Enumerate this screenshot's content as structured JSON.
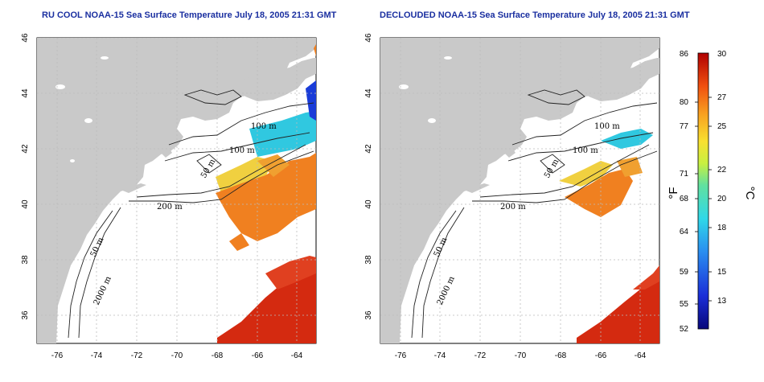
{
  "maps": [
    {
      "id": "left",
      "title": "RU COOL NOAA-15 Sea Surface Temperature July 18, 2005 21:31 GMT",
      "variant": "full-coverage"
    },
    {
      "id": "right",
      "title": "DECLOUDED NOAA-15 Sea Surface Temperature July 18, 2005 21:31 GMT",
      "variant": "declouded"
    }
  ],
  "axes": {
    "lon_ticks": [
      "-76",
      "-74",
      "-72",
      "-70",
      "-68",
      "-66",
      "-64"
    ],
    "lat_ticks": [
      "46",
      "44",
      "42",
      "40",
      "38",
      "36"
    ],
    "lon_range": [
      -77,
      -63
    ],
    "lat_range": [
      35,
      46
    ],
    "grid": true
  },
  "contour_labels": {
    "left": [
      "100 m",
      "100 m",
      "50 m",
      "200 m",
      "50 m",
      "2000 m"
    ],
    "right": [
      "100 m",
      "100 m",
      "50 m",
      "200 m",
      "50 m",
      "2000 m"
    ]
  },
  "colorbar": {
    "fahrenheit_ticks": [
      "86",
      "80",
      "77",
      "71",
      "68",
      "64",
      "59",
      "55",
      "52"
    ],
    "celsius_ticks": [
      "30",
      "27",
      "25",
      "22",
      "20",
      "18",
      "15",
      "13"
    ],
    "unit_f": "°F",
    "unit_c": "°C",
    "range_c": [
      11,
      30
    ]
  },
  "colors": {
    "land": "#c9c9c9",
    "ocean": "#ffffff",
    "title": "#1a2fa0",
    "warm": "#d42a10",
    "orange": "#f08020",
    "yellow": "#f0d040",
    "cyan": "#30c8e0",
    "blue": "#1a3cd8"
  }
}
